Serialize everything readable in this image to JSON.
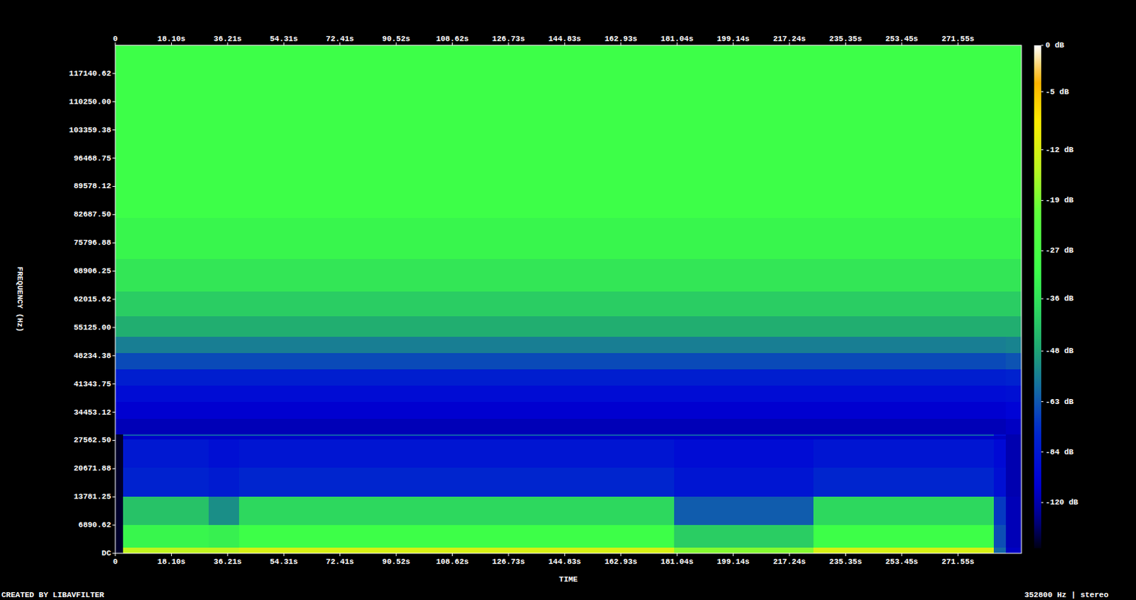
{
  "chart_data": {
    "type": "heatmap",
    "x_label": "TIME",
    "y_label": "FREQUENCY (Hz)",
    "footer": "CREATED BY LIBAVFILTER",
    "info": "352800 Hz | stereo",
    "xlim": [
      0,
      292
    ],
    "ylim": [
      0,
      124031.25
    ],
    "xticks": [
      0,
      {
        "value": 18.1,
        "label": "18.10s"
      },
      {
        "value": 36.21,
        "label": "36.21s"
      },
      {
        "value": 54.31,
        "label": "54.31s"
      },
      {
        "value": 72.41,
        "label": "72.41s"
      },
      {
        "value": 90.52,
        "label": "90.52s"
      },
      {
        "value": 108.62,
        "label": "108.62s"
      },
      {
        "value": 126.73,
        "label": "126.73s"
      },
      {
        "value": 144.83,
        "label": "144.83s"
      },
      {
        "value": 162.93,
        "label": "162.93s"
      },
      {
        "value": 181.04,
        "label": "181.04s"
      },
      {
        "value": 199.14,
        "label": "199.14s"
      },
      {
        "value": 217.24,
        "label": "217.24s"
      },
      {
        "value": 235.35,
        "label": "235.35s"
      },
      {
        "value": 253.45,
        "label": "253.45s"
      },
      {
        "value": 271.55,
        "label": "271.55s"
      }
    ],
    "yticks": [
      {
        "value": 0,
        "label": "DC"
      },
      6890.62,
      13781.25,
      20671.88,
      {
        "value": 27562.5,
        "label": "27562.50"
      },
      34453.12,
      41343.75,
      48234.38,
      {
        "value": 55125,
        "label": "55125.00"
      },
      62015.62,
      68906.25,
      75796.88,
      {
        "value": 82687.5,
        "label": "82687.50"
      },
      89578.12,
      96468.75,
      103359.38,
      {
        "value": 110250,
        "label": "110250.00"
      },
      117140.62
    ],
    "time_bins": [
      0,
      2.5,
      30,
      40,
      180,
      225,
      283,
      287,
      292
    ],
    "frequency_bins": [
      0,
      1500,
      7000,
      14000,
      21000,
      28000,
      28700,
      29100,
      33000,
      37000,
      41000,
      45000,
      49000,
      53000,
      58000,
      64000,
      72000,
      82000,
      124031.25
    ],
    "cells": [
      [
        -200,
        -14,
        -14,
        -12,
        -18,
        -12,
        -60,
        -110
      ],
      [
        -200,
        -32,
        -33,
        -30,
        -40,
        -30,
        -65,
        -115
      ],
      [
        -200,
        -42,
        -52,
        -38,
        -62,
        -38,
        -70,
        -115
      ],
      [
        -200,
        -78,
        -82,
        -76,
        -86,
        -76,
        -90,
        -118
      ],
      [
        -200,
        -84,
        -90,
        -86,
        -92,
        -86,
        -95,
        -118
      ],
      [
        -200,
        -108,
        -108,
        -108,
        -108,
        -108,
        -110,
        -118
      ],
      [
        -200,
        -62,
        -62,
        -62,
        -62,
        -62,
        -90,
        -118
      ],
      [
        -115,
        -115,
        -115,
        -115,
        -115,
        -115,
        -115,
        -110
      ],
      [
        -105,
        -105,
        -105,
        -105,
        -105,
        -105,
        -105,
        -100
      ],
      [
        -92,
        -92,
        -92,
        -92,
        -92,
        -92,
        -92,
        -90
      ],
      [
        -80,
        -80,
        -80,
        -80,
        -80,
        -80,
        -80,
        -78
      ],
      [
        -66,
        -66,
        -66,
        -66,
        -66,
        -66,
        -66,
        -64
      ],
      [
        -55,
        -55,
        -55,
        -55,
        -55,
        -55,
        -55,
        -54
      ],
      [
        -46,
        -46,
        -46,
        -46,
        -46,
        -46,
        -46,
        -46
      ],
      [
        -40,
        -40,
        -40,
        -40,
        -40,
        -40,
        -40,
        -40
      ],
      [
        -35,
        -35,
        -35,
        -35,
        -35,
        -35,
        -35,
        -35
      ],
      [
        -32,
        -32,
        -32,
        -32,
        -32,
        -32,
        -32,
        -32
      ],
      [
        -30,
        -30,
        -30,
        -30,
        -30,
        -30,
        -30,
        -30
      ]
    ],
    "colorbar": {
      "range": [
        0,
        -240
      ],
      "ticks": [
        {
          "value": 0,
          "label": "0 dB"
        },
        {
          "value": -5,
          "label": "-5 dB"
        },
        {
          "value": -12,
          "label": "-12 dB"
        },
        {
          "value": -19,
          "label": "-19 dB"
        },
        {
          "value": -27,
          "label": "-27 dB"
        },
        {
          "value": -36,
          "label": "-36 dB"
        },
        {
          "value": -48,
          "label": "-48 dB"
        },
        {
          "value": -63,
          "label": "-63 dB"
        },
        {
          "value": -84,
          "label": "-84 dB"
        },
        {
          "value": -120,
          "label": "-120 dB"
        }
      ]
    }
  }
}
